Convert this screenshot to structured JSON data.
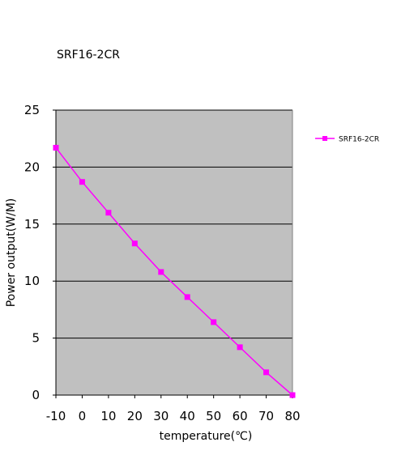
{
  "chart_data": {
    "type": "line",
    "title": "SRF16-2CR",
    "xlabel": "temperature(℃)",
    "ylabel": "Power output(W/M)",
    "x": [
      -10,
      0,
      10,
      20,
      30,
      40,
      50,
      60,
      70,
      80
    ],
    "x_ticks": [
      "-10",
      "0",
      "10",
      "20",
      "30",
      "40",
      "50",
      "60",
      "70",
      "80"
    ],
    "y_ticks": [
      "0",
      "5",
      "10",
      "15",
      "20",
      "25"
    ],
    "xlim": [
      -10,
      80
    ],
    "ylim": [
      0,
      25
    ],
    "grid": "horizontal",
    "legend_position": "right",
    "series": [
      {
        "name": "SRF16-2CR",
        "color": "#ff00ff",
        "marker": "square",
        "values": [
          21.7,
          18.7,
          16.0,
          13.3,
          10.8,
          8.6,
          6.4,
          4.2,
          2.0,
          0.0
        ]
      }
    ],
    "colors": {
      "plot_bg": "#c0c0c0",
      "grid": "#000000",
      "axis": "#000000"
    }
  }
}
